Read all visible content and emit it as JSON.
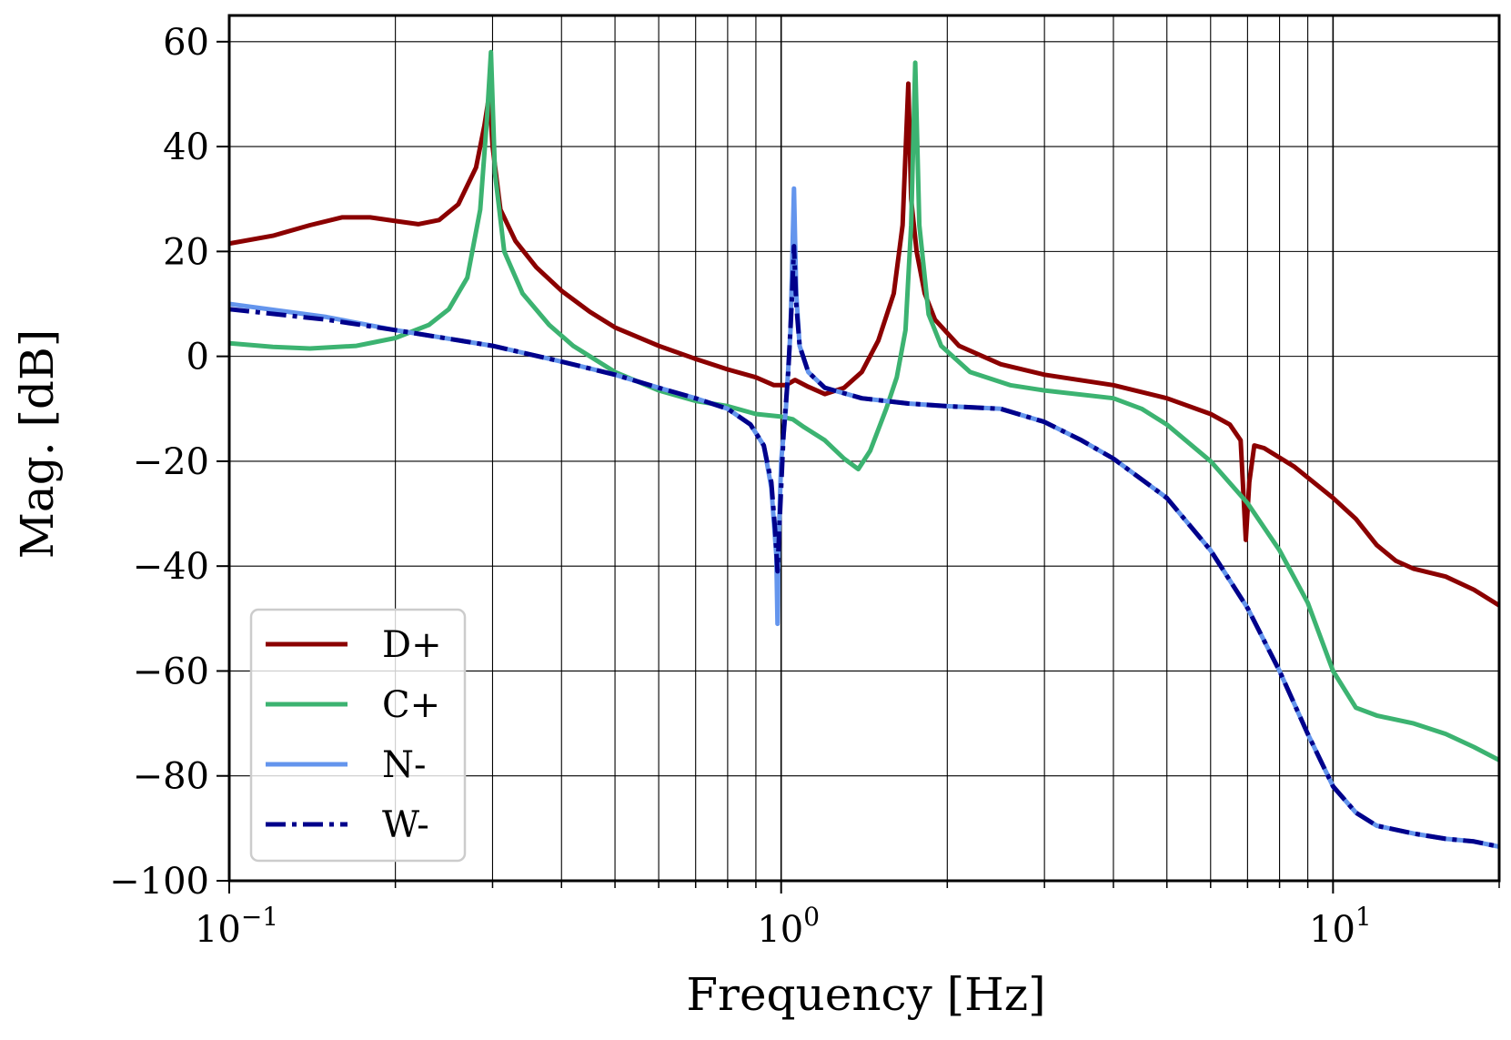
{
  "chart_data": {
    "type": "line",
    "title": "",
    "xlabel": "Frequency [Hz]",
    "ylabel": "Mag. [dB]",
    "xscale": "log",
    "xlim": [
      0.1,
      20
    ],
    "ylim": [
      -100,
      65
    ],
    "grid": "both",
    "legend_position": "lower-left",
    "x_ticks": [
      {
        "value": 0.1,
        "base": "10",
        "exp": "−1"
      },
      {
        "value": 1,
        "base": "10",
        "exp": "0"
      },
      {
        "value": 10,
        "base": "10",
        "exp": "1"
      }
    ],
    "y_ticks": [
      {
        "value": 60,
        "label": "60"
      },
      {
        "value": 40,
        "label": "40"
      },
      {
        "value": 20,
        "label": "20"
      },
      {
        "value": 0,
        "label": "0"
      },
      {
        "value": -20,
        "label": "−20"
      },
      {
        "value": -40,
        "label": "−40"
      },
      {
        "value": -60,
        "label": "−60"
      },
      {
        "value": -80,
        "label": "−80"
      },
      {
        "value": -100,
        "label": "−100"
      }
    ],
    "series": [
      {
        "name": "D+",
        "color": "#8b0000",
        "style": "solid",
        "points": [
          [
            0.1,
            21.5
          ],
          [
            0.12,
            23
          ],
          [
            0.14,
            25
          ],
          [
            0.16,
            26.5
          ],
          [
            0.18,
            26.5
          ],
          [
            0.2,
            25.8
          ],
          [
            0.22,
            25.2
          ],
          [
            0.24,
            26
          ],
          [
            0.26,
            29
          ],
          [
            0.28,
            36
          ],
          [
            0.29,
            44
          ],
          [
            0.296,
            50
          ],
          [
            0.3,
            40
          ],
          [
            0.31,
            28
          ],
          [
            0.33,
            22
          ],
          [
            0.36,
            17
          ],
          [
            0.4,
            12.5
          ],
          [
            0.45,
            8.5
          ],
          [
            0.5,
            5.5
          ],
          [
            0.6,
            2
          ],
          [
            0.7,
            -0.5
          ],
          [
            0.8,
            -2.5
          ],
          [
            0.9,
            -4
          ],
          [
            0.97,
            -5.5
          ],
          [
            1.02,
            -5.5
          ],
          [
            1.06,
            -4.5
          ],
          [
            1.12,
            -5.8
          ],
          [
            1.2,
            -7.2
          ],
          [
            1.3,
            -6
          ],
          [
            1.4,
            -3
          ],
          [
            1.5,
            3
          ],
          [
            1.6,
            12
          ],
          [
            1.66,
            25
          ],
          [
            1.7,
            52
          ],
          [
            1.72,
            30
          ],
          [
            1.76,
            20
          ],
          [
            1.82,
            12
          ],
          [
            1.9,
            7
          ],
          [
            2.1,
            2
          ],
          [
            2.5,
            -1.5
          ],
          [
            3,
            -3.5
          ],
          [
            4,
            -5.5
          ],
          [
            5,
            -8
          ],
          [
            6,
            -11
          ],
          [
            6.5,
            -13
          ],
          [
            6.8,
            -16
          ],
          [
            6.95,
            -35
          ],
          [
            7.05,
            -24
          ],
          [
            7.2,
            -17
          ],
          [
            7.5,
            -17.5
          ],
          [
            8.5,
            -21
          ],
          [
            10,
            -27
          ],
          [
            11,
            -31
          ],
          [
            12,
            -36
          ],
          [
            13,
            -39
          ],
          [
            14,
            -40.5
          ],
          [
            16,
            -42
          ],
          [
            18,
            -44.5
          ],
          [
            20,
            -47.5
          ]
        ]
      },
      {
        "name": "C+",
        "color": "#3cb371",
        "style": "solid",
        "points": [
          [
            0.1,
            2.5
          ],
          [
            0.12,
            1.8
          ],
          [
            0.14,
            1.5
          ],
          [
            0.17,
            2
          ],
          [
            0.2,
            3.5
          ],
          [
            0.23,
            6
          ],
          [
            0.25,
            9
          ],
          [
            0.27,
            15
          ],
          [
            0.285,
            28
          ],
          [
            0.293,
            45
          ],
          [
            0.298,
            58
          ],
          [
            0.303,
            35
          ],
          [
            0.315,
            20
          ],
          [
            0.34,
            12
          ],
          [
            0.38,
            6
          ],
          [
            0.42,
            2
          ],
          [
            0.5,
            -3
          ],
          [
            0.6,
            -6.5
          ],
          [
            0.7,
            -8.5
          ],
          [
            0.8,
            -9.5
          ],
          [
            0.9,
            -11
          ],
          [
            1.0,
            -11.5
          ],
          [
            1.05,
            -12
          ],
          [
            1.1,
            -13.5
          ],
          [
            1.2,
            -16
          ],
          [
            1.3,
            -19.5
          ],
          [
            1.38,
            -21.5
          ],
          [
            1.45,
            -18
          ],
          [
            1.55,
            -10
          ],
          [
            1.62,
            -4
          ],
          [
            1.68,
            5
          ],
          [
            1.72,
            25
          ],
          [
            1.75,
            56
          ],
          [
            1.78,
            25
          ],
          [
            1.85,
            8
          ],
          [
            1.95,
            2
          ],
          [
            2.2,
            -3
          ],
          [
            2.6,
            -5.5
          ],
          [
            3,
            -6.5
          ],
          [
            4,
            -8
          ],
          [
            4.5,
            -10
          ],
          [
            5,
            -13
          ],
          [
            6,
            -20
          ],
          [
            7,
            -28
          ],
          [
            8,
            -37
          ],
          [
            9,
            -47
          ],
          [
            10,
            -60
          ],
          [
            11,
            -67
          ],
          [
            12,
            -68.5
          ],
          [
            14,
            -70
          ],
          [
            16,
            -72
          ],
          [
            18,
            -74.5
          ],
          [
            20,
            -77
          ]
        ]
      },
      {
        "name": "N-",
        "color": "#6495ed",
        "style": "solid",
        "points": [
          [
            0.1,
            10
          ],
          [
            0.15,
            7.5
          ],
          [
            0.2,
            5
          ],
          [
            0.3,
            2
          ],
          [
            0.4,
            -1
          ],
          [
            0.5,
            -3.5
          ],
          [
            0.6,
            -6
          ],
          [
            0.7,
            -8
          ],
          [
            0.8,
            -10
          ],
          [
            0.88,
            -13
          ],
          [
            0.93,
            -17
          ],
          [
            0.96,
            -25
          ],
          [
            0.98,
            -38
          ],
          [
            0.985,
            -51
          ],
          [
            0.99,
            -35
          ],
          [
            1.0,
            -20
          ],
          [
            1.02,
            -10
          ],
          [
            1.04,
            5
          ],
          [
            1.055,
            32
          ],
          [
            1.065,
            12
          ],
          [
            1.08,
            2
          ],
          [
            1.12,
            -3
          ],
          [
            1.2,
            -6
          ],
          [
            1.4,
            -8
          ],
          [
            1.7,
            -9
          ],
          [
            2,
            -9.5
          ],
          [
            2.5,
            -10
          ],
          [
            3,
            -12.5
          ],
          [
            3.5,
            -16
          ],
          [
            4,
            -19.5
          ],
          [
            5,
            -27
          ],
          [
            6,
            -37
          ],
          [
            7,
            -48
          ],
          [
            8,
            -60
          ],
          [
            9,
            -72
          ],
          [
            10,
            -82
          ],
          [
            11,
            -87
          ],
          [
            12,
            -89.5
          ],
          [
            14,
            -91
          ],
          [
            16,
            -92
          ],
          [
            18,
            -92.5
          ],
          [
            20,
            -93.5
          ]
        ]
      },
      {
        "name": "W-",
        "color": "#00008b",
        "style": "dashdot",
        "points": [
          [
            0.1,
            9
          ],
          [
            0.15,
            7
          ],
          [
            0.2,
            5
          ],
          [
            0.3,
            2
          ],
          [
            0.4,
            -1
          ],
          [
            0.5,
            -3.5
          ],
          [
            0.6,
            -6
          ],
          [
            0.7,
            -8
          ],
          [
            0.8,
            -10
          ],
          [
            0.88,
            -13
          ],
          [
            0.93,
            -17
          ],
          [
            0.96,
            -24
          ],
          [
            0.975,
            -33
          ],
          [
            0.985,
            -41
          ],
          [
            0.995,
            -30
          ],
          [
            1.01,
            -15
          ],
          [
            1.03,
            -3
          ],
          [
            1.045,
            10
          ],
          [
            1.055,
            21
          ],
          [
            1.065,
            10
          ],
          [
            1.08,
            2
          ],
          [
            1.12,
            -3
          ],
          [
            1.2,
            -6
          ],
          [
            1.4,
            -8
          ],
          [
            1.7,
            -9
          ],
          [
            2,
            -9.5
          ],
          [
            2.5,
            -10
          ],
          [
            3,
            -12.5
          ],
          [
            3.5,
            -16
          ],
          [
            4,
            -19.5
          ],
          [
            5,
            -27
          ],
          [
            6,
            -37
          ],
          [
            7,
            -48
          ],
          [
            8,
            -60
          ],
          [
            9,
            -72
          ],
          [
            10,
            -82
          ],
          [
            11,
            -87
          ],
          [
            12,
            -89.5
          ],
          [
            14,
            -91
          ],
          [
            16,
            -92
          ],
          [
            18,
            -92.5
          ],
          [
            20,
            -93.5
          ]
        ]
      }
    ]
  }
}
